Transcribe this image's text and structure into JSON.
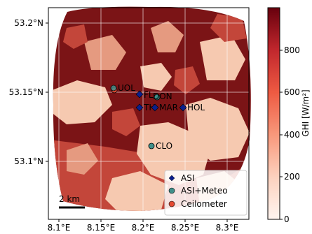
{
  "map": {
    "x_ticks": [
      "8.1°E",
      "8.15°E",
      "8.2°E",
      "8.25°E",
      "8.3°E"
    ],
    "y_ticks": [
      "53.2°N",
      "53.15°N",
      "53.1°N"
    ],
    "scale_bar_label": "2 km"
  },
  "colorbar": {
    "label": "GHI [W/m²]",
    "ticks": [
      "0",
      "200",
      "400",
      "600",
      "800"
    ],
    "range": [
      0,
      1000
    ]
  },
  "stations": [
    {
      "code": "UOL",
      "type": "Ceilometer"
    },
    {
      "code": "FLE",
      "label_shown": "FL",
      "type": "ASI"
    },
    {
      "code": "DON",
      "type": "ASI+Meteo"
    },
    {
      "code": "TH",
      "type": "ASI"
    },
    {
      "code": "MAR",
      "type": "ASI"
    },
    {
      "code": "HOL",
      "type": "ASI"
    },
    {
      "code": "CLO",
      "type": "ASI+Meteo"
    }
  ],
  "legend": {
    "items": [
      {
        "label": "ASI",
        "marker": "diamond",
        "color": "#0b1f8c"
      },
      {
        "label": "ASI+Meteo",
        "marker": "circle",
        "color": "#3f8f8a"
      },
      {
        "label": "Ceilometer",
        "marker": "circle",
        "color": "#e34a33"
      }
    ]
  },
  "colors": {
    "dark_red": "#7b1416",
    "mid_red": "#c3463a",
    "light_pink": "#f6c9b0",
    "salmon": "#e59a80"
  }
}
